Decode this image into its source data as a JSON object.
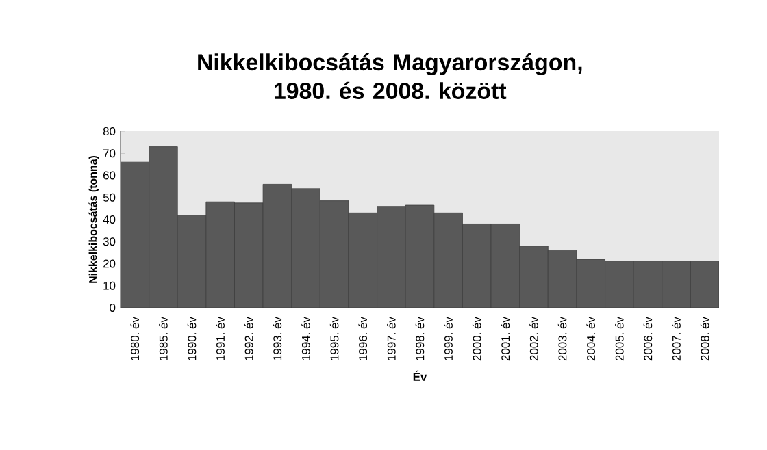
{
  "chart_data": {
    "type": "bar",
    "title": "Nikkelkibocsátás Magyarországon, 1980. és 2008. között",
    "xlabel": "Év",
    "ylabel": "Nikkelkibocsátás  (tonna)",
    "categories": [
      "1980. év",
      "1985. év",
      "1990. év",
      "1991. év",
      "1992. év",
      "1993. év",
      "1994. év",
      "1995. év",
      "1996. év",
      "1997. év",
      "1998. év",
      "1999. év",
      "2000. év",
      "2001. év",
      "2002. év",
      "2003. év",
      "2004. év",
      "2005. év",
      "2006. év",
      "2007. év",
      "2008. év"
    ],
    "values": [
      66,
      73,
      42,
      48,
      47.5,
      56,
      54,
      48.5,
      43,
      46,
      46.5,
      43,
      38,
      38,
      28,
      26,
      22,
      21,
      21,
      21,
      21
    ],
    "color": "#595959",
    "ylim": [
      0,
      80
    ],
    "yticks": [
      0,
      10,
      20,
      30,
      40,
      50,
      60,
      70,
      80
    ],
    "grid": false
  }
}
